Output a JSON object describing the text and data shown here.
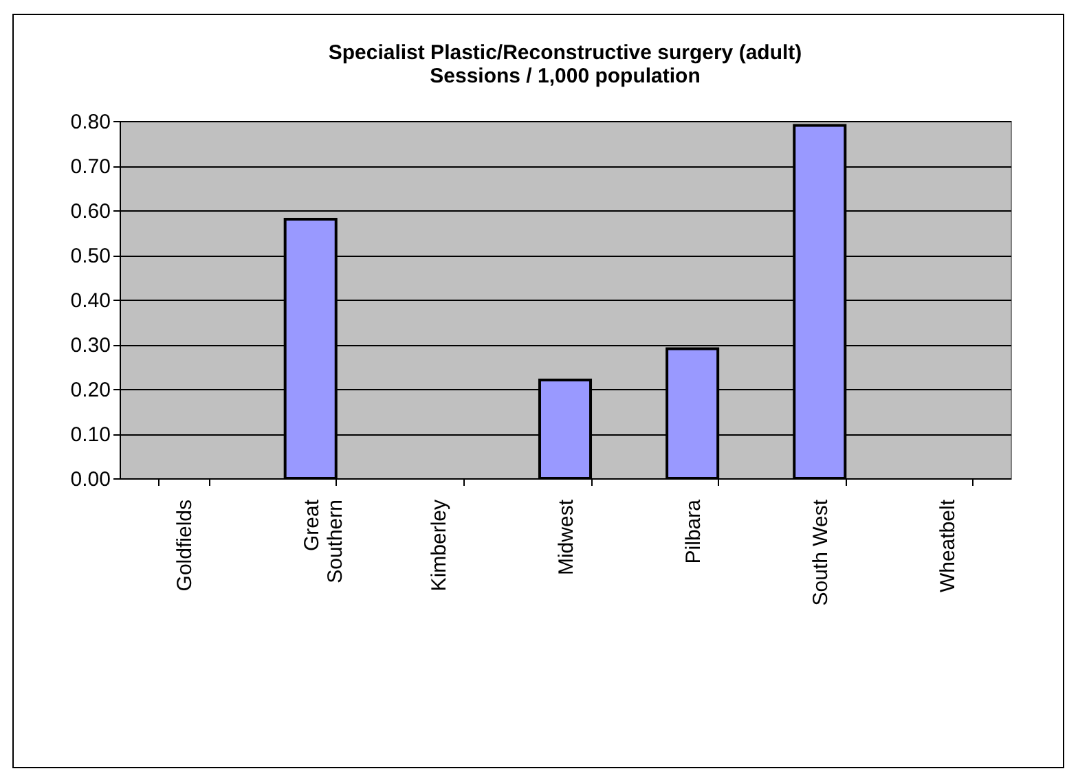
{
  "chart_data": {
    "type": "bar",
    "title": "Specialist Plastic/Reconstructive surgery (adult)",
    "subtitle": "Sessions / 1,000 population",
    "categories": [
      "Goldfields",
      "Great Southern",
      "Kimberley",
      "Midwest",
      "Pilbara",
      "South West",
      "Wheatbelt"
    ],
    "values": [
      null,
      0.58,
      null,
      0.22,
      0.29,
      0.79,
      null
    ],
    "color": "#9999ff",
    "ylim": [
      0,
      0.8
    ],
    "yticks": [
      {
        "value": 0,
        "label": "0.00"
      },
      {
        "value": 0.1,
        "label": "0.10"
      },
      {
        "value": 0.2,
        "label": "0.20"
      },
      {
        "value": 0.3,
        "label": "0.30"
      },
      {
        "value": 0.4,
        "label": "0.40"
      },
      {
        "value": 0.5,
        "label": "0.50"
      },
      {
        "value": 0.6,
        "label": "0.60"
      },
      {
        "value": 0.7,
        "label": "0.70"
      },
      {
        "value": 0.8,
        "label": "0.80"
      }
    ],
    "grid": "y"
  }
}
